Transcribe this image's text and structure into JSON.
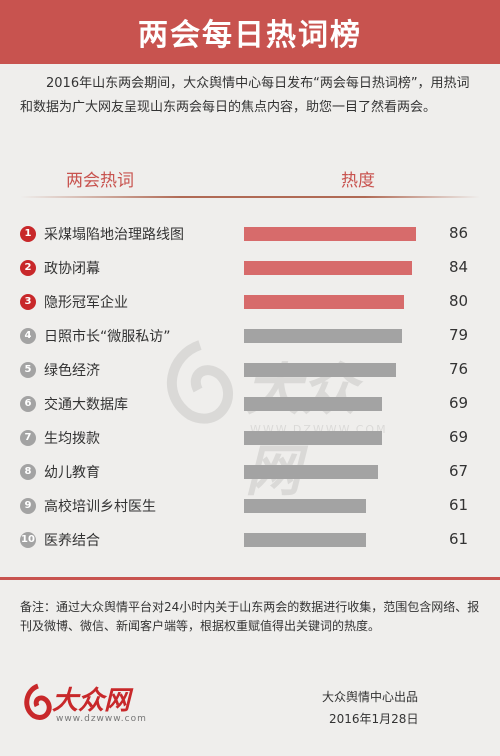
{
  "header": {
    "title": "两会每日热词榜"
  },
  "intro": "2016年山东两会期间，大众舆情中心每日发布“两会每日热词榜”，用热词和数据为广大网友呈现山东两会每日的焦点内容，助您一目了然看两会。",
  "columns": {
    "term": "两会热词",
    "heat": "热度"
  },
  "colors": {
    "accent": "#c8534f",
    "top_bar": "#d76b6b",
    "bar": "#a3a3a3"
  },
  "chart_data": {
    "type": "bar",
    "orientation": "horizontal",
    "categories": [
      "采煤塌陷地治理路线图",
      "政协闭幕",
      "隐形冠军企业",
      "日照市长“微服私访”",
      "绿色经济",
      "交通大数据库",
      "生均拨款",
      "幼儿教育",
      "高校培训乡村医生",
      "医养结合"
    ],
    "ranks": [
      "1",
      "2",
      "3",
      "4",
      "5",
      "6",
      "7",
      "8",
      "9",
      "10"
    ],
    "values": [
      86,
      84,
      80,
      79,
      76,
      69,
      69,
      67,
      61,
      61
    ]
  },
  "watermark": {
    "text": "大众网",
    "url": "WWW.DZWWW.COM"
  },
  "note": "备注：通过大众舆情平台对24小时内关于山东两会的数据进行收集，范围包含网络、报刊及微博、微信、新闻客户端等，根据权重赋值得出关键词的热度。",
  "logo": {
    "text": "大众网",
    "url": "www.dzwww.com"
  },
  "footer": {
    "publisher": "大众舆情中心出品",
    "date": "2016年1月28日"
  }
}
